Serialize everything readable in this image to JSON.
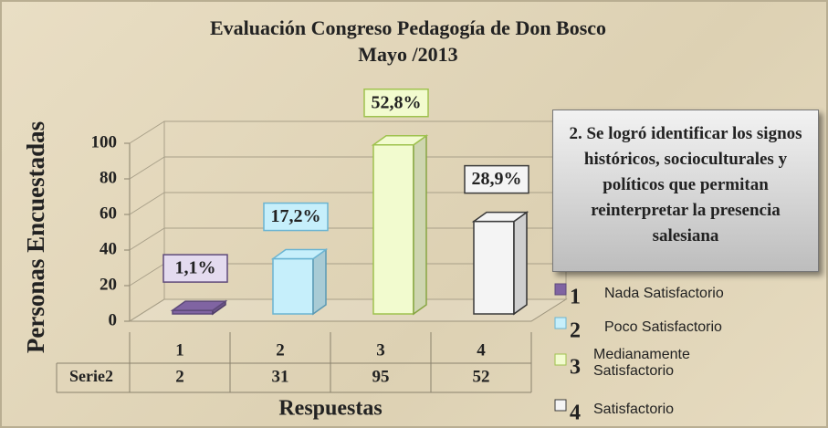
{
  "chart_data": {
    "type": "bar3d",
    "title": "Evaluación Congreso Pedagogía de Don Bosco",
    "subtitle": "Mayo /2013",
    "y_label": "Personas Encuestadas",
    "x_label": "Respuestas",
    "categories": [
      "1",
      "2",
      "3",
      "4"
    ],
    "series": [
      {
        "name": "Serie2",
        "values": [
          2,
          31,
          95,
          52
        ],
        "colors": [
          "#8064a2",
          "#c6effb",
          "#f2fbcf",
          "#f4f4f4"
        ],
        "edge_colors": [
          "#5e4a7a",
          "#6ab4d2",
          "#9fc24e",
          "#3a3a3a"
        ]
      }
    ],
    "annotations": [
      "1,1%",
      "17,2%",
      "52,8%",
      "28,9%"
    ],
    "legend": [
      "Nada Satisfactorio",
      "Poco Satisfactorio",
      "Medianamente Satisfactorio",
      "Satisfactorio"
    ],
    "callout": "2. Se logró identificar los signos históricos, socioculturales y políticos que permitan reinterpretar la presencia salesiana",
    "ylim": [
      0,
      100
    ],
    "yticks": [
      0,
      20,
      40,
      60,
      80,
      100
    ],
    "grid": true
  }
}
